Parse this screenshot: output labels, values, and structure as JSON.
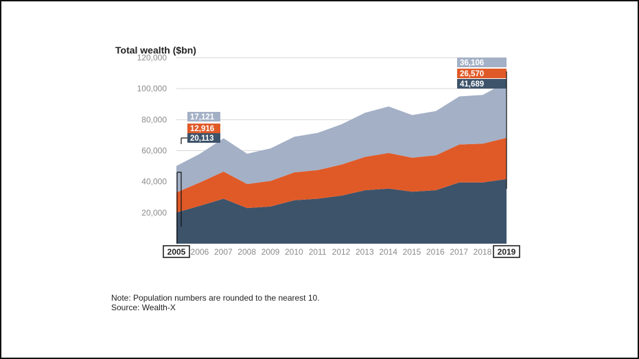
{
  "chart_data": {
    "type": "area",
    "stacked": true,
    "title": "Total wealth ($bn)",
    "xlabel": "",
    "ylabel": "",
    "x": [
      "2005",
      "2006",
      "2007",
      "2008",
      "2009",
      "2010",
      "2011",
      "2012",
      "2013",
      "2014",
      "2015",
      "2016",
      "2017",
      "2018",
      "2019"
    ],
    "yticks": [
      20000,
      40000,
      60000,
      80000,
      100000,
      120000
    ],
    "ytick_labels": [
      "20,000",
      "40,000",
      "60,000",
      "80,000",
      "100,000",
      "120,000"
    ],
    "ylim": [
      0,
      120000
    ],
    "grid": true,
    "series": [
      {
        "color": "#3d536a",
        "values": [
          20113,
          24500,
          29000,
          23000,
          24000,
          28000,
          29000,
          31000,
          34500,
          35500,
          33500,
          34500,
          39500,
          39500,
          41689
        ]
      },
      {
        "color": "#e05a28",
        "values": [
          12916,
          15000,
          17500,
          15500,
          16500,
          18000,
          18500,
          20000,
          21500,
          23000,
          22000,
          22500,
          24500,
          25000,
          26570
        ]
      },
      {
        "color": "#a3b0c6",
        "values": [
          17121,
          18500,
          21500,
          19500,
          21000,
          23000,
          24000,
          26000,
          28500,
          30000,
          27500,
          28500,
          31000,
          31500,
          36106
        ]
      }
    ],
    "callouts": [
      {
        "x": "2005",
        "values": [
          "17,121",
          "12,916",
          "20,113"
        ],
        "colors": [
          "#a3b0c6",
          "#e05a28",
          "#3d536a"
        ]
      },
      {
        "x": "2019",
        "values": [
          "36,106",
          "26,570",
          "41,689"
        ],
        "colors": [
          "#a3b0c6",
          "#e05a28",
          "#3d536a"
        ]
      }
    ],
    "boxed_x_labels": [
      "2005",
      "2019"
    ]
  },
  "note": {
    "line1": "Note: Population numbers are rounded to the nearest 10.",
    "line2": "Source: Wealth-X"
  }
}
